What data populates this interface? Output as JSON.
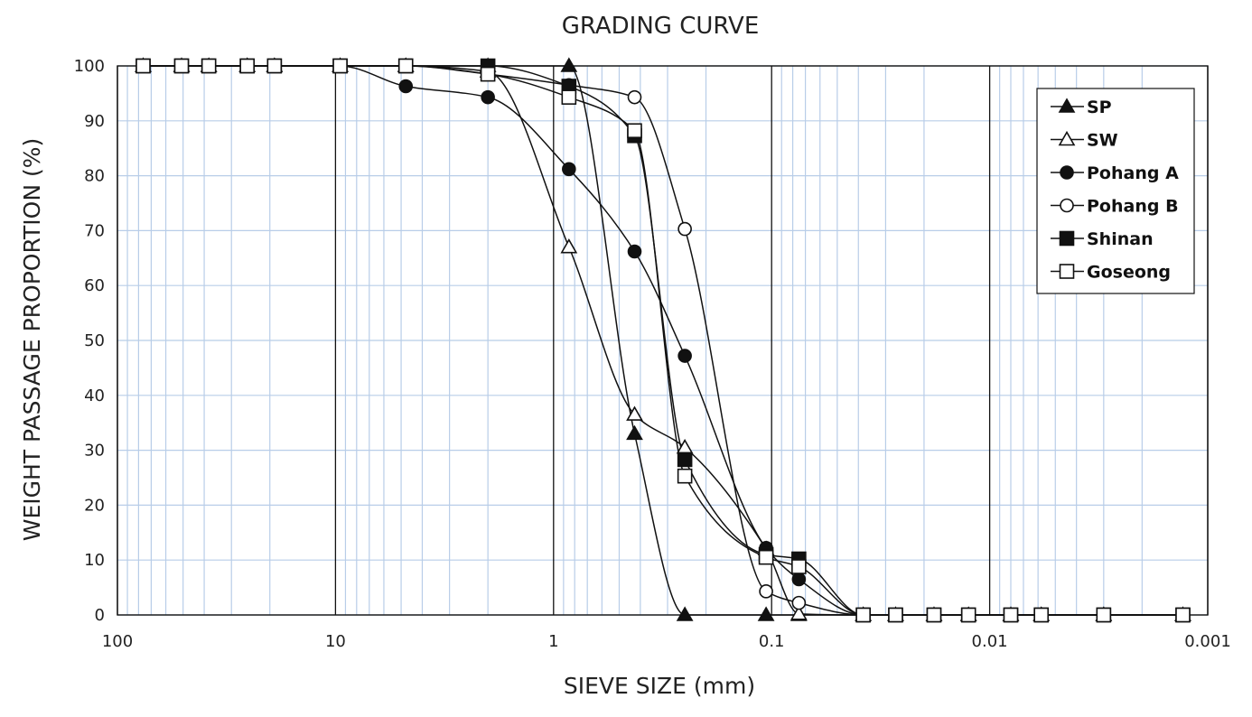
{
  "chart_data": {
    "type": "line",
    "title": "GRADING CURVE",
    "xlabel": "SIEVE SIZE   (mm)",
    "ylabel": "WEIGHT PASSAGE PROPORTION (%)",
    "x_scale": "log",
    "x_reversed": true,
    "xlim": [
      100,
      0.001
    ],
    "ylim": [
      0,
      100
    ],
    "x_ticks": [
      100,
      10,
      1,
      0.1,
      0.01,
      0.001
    ],
    "x_tick_labels": [
      "100",
      "10",
      "1",
      "0.1",
      "0.01",
      "0.001"
    ],
    "y_ticks": [
      0,
      10,
      20,
      30,
      40,
      50,
      60,
      70,
      80,
      90,
      100
    ],
    "grid": true,
    "legend": "top-right",
    "colors": {
      "line": "#111111",
      "grid_minor": "#b8cde8",
      "grid_major": "#111111"
    },
    "series": [
      {
        "name": "SP",
        "marker": "triangle-filled",
        "x": [
          76.2,
          50.8,
          38.1,
          25.4,
          19.05,
          9.52,
          4.76,
          2,
          0.85,
          0.425,
          0.25,
          0.106,
          0.075,
          0.038,
          0.027,
          0.018,
          0.0125,
          0.008,
          0.0058,
          0.003,
          0.0013
        ],
        "y": [
          100,
          100,
          100,
          100,
          100,
          100,
          100,
          100,
          100,
          33,
          0,
          0,
          0,
          0,
          0,
          0,
          0,
          0,
          0,
          0,
          0
        ]
      },
      {
        "name": "SW",
        "marker": "triangle-open",
        "x": [
          76.2,
          50.8,
          38.1,
          25.4,
          19.05,
          9.52,
          4.76,
          2,
          0.85,
          0.425,
          0.25,
          0.106,
          0.075,
          0.038,
          0.027,
          0.018,
          0.0125,
          0.008,
          0.0058,
          0.003,
          0.0013
        ],
        "y": [
          100,
          100,
          100,
          100,
          100,
          100,
          100,
          99,
          67,
          36.5,
          30.5,
          12,
          0.2,
          0,
          0,
          0,
          0,
          0,
          0,
          0,
          0
        ]
      },
      {
        "name": "Pohang A",
        "marker": "circle-filled",
        "x": [
          76.2,
          50.8,
          38.1,
          25.4,
          19.05,
          9.52,
          4.76,
          2,
          0.85,
          0.425,
          0.25,
          0.106,
          0.075,
          0.038,
          0.027,
          0.018,
          0.0125,
          0.008,
          0.0058,
          0.003,
          0.0013
        ],
        "y": [
          100,
          100,
          100,
          100,
          100,
          100,
          96.3,
          94.3,
          81.2,
          66.2,
          47.2,
          12.2,
          6.5,
          0,
          0,
          0,
          0,
          0,
          0,
          0,
          0
        ]
      },
      {
        "name": "Pohang B",
        "marker": "circle-open",
        "x": [
          76.2,
          50.8,
          38.1,
          25.4,
          19.05,
          9.52,
          4.76,
          2,
          0.85,
          0.425,
          0.25,
          0.106,
          0.075,
          0.038,
          0.027,
          0.018,
          0.0125,
          0.008,
          0.0058,
          0.003,
          0.0013
        ],
        "y": [
          100,
          100,
          100,
          100,
          100,
          100,
          100,
          98.5,
          96.5,
          94.3,
          70.3,
          4.3,
          2.2,
          0,
          0,
          0,
          0,
          0,
          0,
          0,
          0
        ]
      },
      {
        "name": "Shinan",
        "marker": "square-filled",
        "x": [
          76.2,
          50.8,
          38.1,
          25.4,
          19.05,
          9.52,
          4.76,
          2,
          0.85,
          0.425,
          0.25,
          0.106,
          0.075,
          0.038,
          0.027,
          0.018,
          0.0125,
          0.008,
          0.0058,
          0.003,
          0.0013
        ],
        "y": [
          100,
          100,
          100,
          100,
          100,
          100,
          100,
          100,
          96.3,
          87.3,
          28.3,
          11,
          10.2,
          0,
          0,
          0,
          0,
          0,
          0,
          0,
          0
        ]
      },
      {
        "name": "Goseong",
        "marker": "square-open",
        "x": [
          76.2,
          50.8,
          38.1,
          25.4,
          19.05,
          9.52,
          4.76,
          2,
          0.85,
          0.425,
          0.25,
          0.106,
          0.075,
          0.038,
          0.027,
          0.018,
          0.0125,
          0.008,
          0.0058,
          0.003,
          0.0013
        ],
        "y": [
          100,
          100,
          100,
          100,
          100,
          100,
          100,
          98.5,
          94.3,
          88.2,
          25.3,
          10.5,
          8.8,
          0,
          0,
          0,
          0,
          0,
          0,
          0,
          0
        ]
      }
    ]
  }
}
